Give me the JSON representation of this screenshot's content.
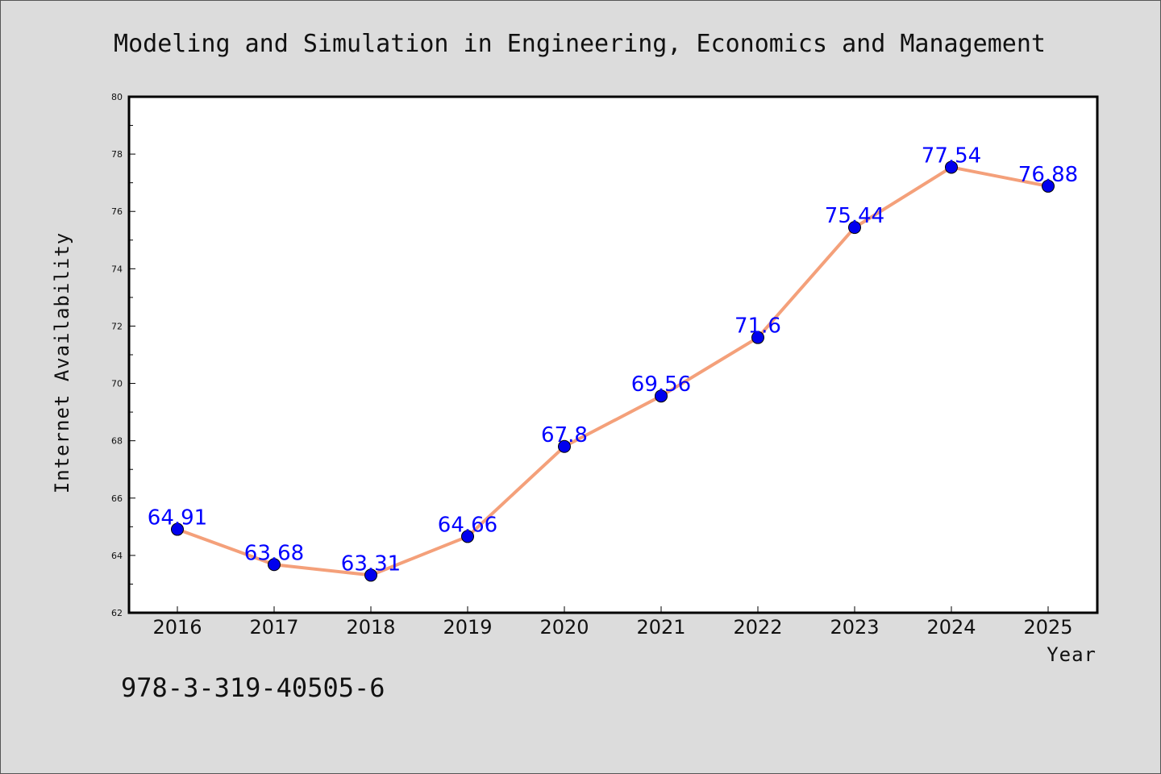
{
  "chart_data": {
    "type": "line",
    "title": "Modeling and Simulation in Engineering, Economics and Management",
    "xlabel": "Year",
    "ylabel": "Internet Availability",
    "categories": [
      "2016",
      "2017",
      "2018",
      "2019",
      "2020",
      "2021",
      "2022",
      "2023",
      "2024",
      "2025"
    ],
    "series": [
      {
        "values": [
          64.91,
          63.68,
          63.31,
          64.66,
          67.8,
          69.56,
          71.6,
          75.44,
          77.54,
          76.88
        ],
        "data_labels": [
          "64.91",
          "63.68",
          "63.31",
          "64.66",
          "67.8",
          "69.56",
          "71.6",
          "75.44",
          "77.54",
          "76.88"
        ]
      }
    ],
    "ylim": [
      62,
      80
    ],
    "yticks": [
      "62",
      "64",
      "66",
      "68",
      "70",
      "72",
      "74",
      "76",
      "78",
      "80"
    ],
    "grid": false,
    "colors": {
      "line": "#f4a07a",
      "marker": "#0000ee",
      "label": "#0000ff"
    }
  },
  "footer": {
    "isbn": "978-3-319-40505-6"
  }
}
